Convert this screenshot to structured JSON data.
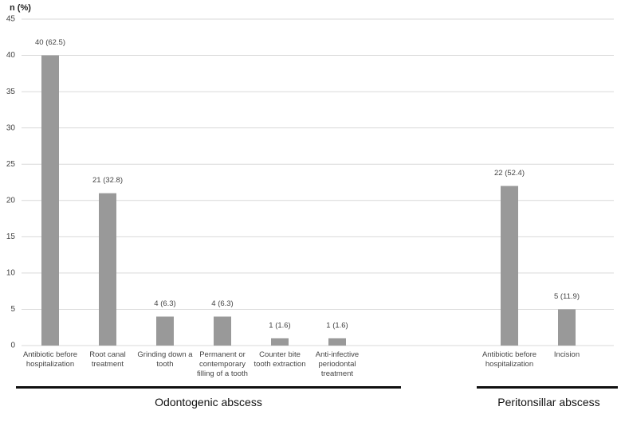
{
  "chart_data": {
    "type": "bar",
    "ylabel": "n (%)",
    "categories": [
      "Antibiotic before hospitalization",
      "Root canal treatment",
      "Grinding down a tooth",
      "Permanent or contemporary filling of a tooth",
      "Counter bite tooth extraction",
      "Anti-infective periodontal treatment",
      null,
      null,
      "Antibiotic before hospitalization",
      "Incision"
    ],
    "values": [
      40,
      21,
      4,
      4,
      1,
      1,
      null,
      null,
      22,
      5
    ],
    "value_labels": [
      "40 (62.5)",
      "21 (32.8)",
      "4 (6.3)",
      "4 (6.3)",
      "1 (1.6)",
      "1 (1.6)",
      null,
      null,
      "22 (52.4)",
      "5 (11.9)"
    ],
    "groups": [
      "Odontogenic abscess",
      "Peritonsillar abscess"
    ],
    "color": "#999999",
    "ylim": [
      0,
      45
    ],
    "yticks": [
      0,
      5,
      10,
      15,
      20,
      25,
      30,
      35,
      40,
      45
    ],
    "grid": true
  }
}
